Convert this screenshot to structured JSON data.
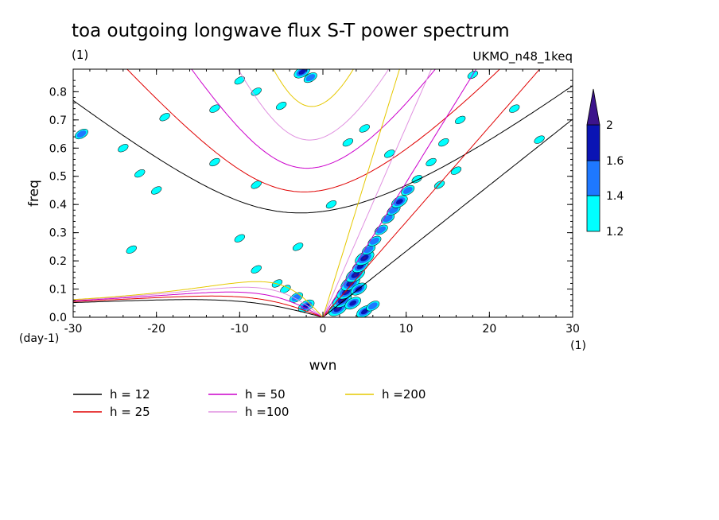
{
  "chart_data": {
    "type": "heatmap",
    "title": "toa outgoing longwave flux S-T power spectrum",
    "units_label": "(1)",
    "model_label": "UKMO_n48_1keq",
    "xlabel": "wvn",
    "ylabel": "freq",
    "x_unit_label": "(1)",
    "y_unit_label": "(day-1)",
    "xlim": [
      -30,
      30
    ],
    "ylim": [
      0,
      0.88
    ],
    "x_ticks": [
      -30,
      -20,
      -10,
      0,
      10,
      20,
      30
    ],
    "y_ticks": [
      0.0,
      0.1,
      0.2,
      0.3,
      0.4,
      0.5,
      0.6,
      0.7,
      0.8
    ],
    "x_tick_labels": [
      "-30",
      "-20",
      "-10",
      "0",
      "10",
      "20",
      "30"
    ],
    "y_tick_labels": [
      "0.0",
      "0.1",
      "0.2",
      "0.3",
      "0.4",
      "0.5",
      "0.6",
      "0.7",
      "0.8"
    ],
    "colorbar": {
      "levels": [
        1.2,
        1.4,
        1.6,
        2
      ],
      "labels": [
        "1.2",
        "1.4",
        "1.6",
        "2"
      ],
      "colors": [
        "#00ffff",
        "#1e78ff",
        "#0a14b4",
        "#3c148c"
      ]
    },
    "dispersion_curves": [
      {
        "label": "h = 12",
        "h": 12,
        "color": "#000000"
      },
      {
        "label": "h = 25",
        "h": 25,
        "color": "#e00000"
      },
      {
        "label": "h = 50",
        "h": 50,
        "color": "#cc00cc"
      },
      {
        "label": "h =100",
        "h": 100,
        "color": "#e090e0"
      },
      {
        "label": "h =200",
        "h": 200,
        "color": "#e6c800"
      }
    ],
    "power_blobs": [
      {
        "x": 1.8,
        "y": 0.03,
        "level": 4
      },
      {
        "x": 2.3,
        "y": 0.06,
        "level": 4
      },
      {
        "x": 2.8,
        "y": 0.09,
        "level": 4
      },
      {
        "x": 3.3,
        "y": 0.12,
        "level": 4
      },
      {
        "x": 3.9,
        "y": 0.15,
        "level": 4
      },
      {
        "x": 4.5,
        "y": 0.18,
        "level": 3
      },
      {
        "x": 5.0,
        "y": 0.21,
        "level": 4
      },
      {
        "x": 4.3,
        "y": 0.1,
        "level": 3
      },
      {
        "x": 3.6,
        "y": 0.05,
        "level": 3
      },
      {
        "x": 5.5,
        "y": 0.24,
        "level": 2
      },
      {
        "x": 6.2,
        "y": 0.27,
        "level": 2
      },
      {
        "x": 7.0,
        "y": 0.31,
        "level": 2
      },
      {
        "x": 7.8,
        "y": 0.35,
        "level": 2
      },
      {
        "x": 8.5,
        "y": 0.38,
        "level": 2
      },
      {
        "x": 9.2,
        "y": 0.41,
        "level": 3
      },
      {
        "x": 10.2,
        "y": 0.45,
        "level": 2
      },
      {
        "x": 11.3,
        "y": 0.49,
        "level": 1
      },
      {
        "x": 13.0,
        "y": 0.55,
        "level": 1
      },
      {
        "x": 14.5,
        "y": 0.62,
        "level": 1
      },
      {
        "x": 16.5,
        "y": 0.7,
        "level": 1
      },
      {
        "x": -2.0,
        "y": 0.04,
        "level": 3
      },
      {
        "x": -3.2,
        "y": 0.07,
        "level": 2
      },
      {
        "x": -4.5,
        "y": 0.1,
        "level": 1
      },
      {
        "x": -5.5,
        "y": 0.12,
        "level": 1
      },
      {
        "x": 5.0,
        "y": 0.02,
        "level": 3
      },
      {
        "x": 6.0,
        "y": 0.04,
        "level": 2
      },
      {
        "x": -1.5,
        "y": 0.85,
        "level": 2
      },
      {
        "x": -2.5,
        "y": 0.87,
        "level": 3
      },
      {
        "x": -5.0,
        "y": 0.75,
        "level": 1
      },
      {
        "x": -8.0,
        "y": 0.8,
        "level": 1
      },
      {
        "x": -10.0,
        "y": 0.84,
        "level": 1
      },
      {
        "x": -19.0,
        "y": 0.71,
        "level": 1
      },
      {
        "x": -20.0,
        "y": 0.45,
        "level": 1
      },
      {
        "x": -22.0,
        "y": 0.51,
        "level": 1
      },
      {
        "x": -29.0,
        "y": 0.65,
        "level": 2
      },
      {
        "x": -24.0,
        "y": 0.6,
        "level": 1
      },
      {
        "x": -13.0,
        "y": 0.55,
        "level": 1
      },
      {
        "x": -8.0,
        "y": 0.47,
        "level": 1
      },
      {
        "x": 5.0,
        "y": 0.67,
        "level": 1
      },
      {
        "x": 8.0,
        "y": 0.58,
        "level": 1
      },
      {
        "x": 16.0,
        "y": 0.52,
        "level": 1
      },
      {
        "x": 14.0,
        "y": 0.47,
        "level": 1
      },
      {
        "x": 23.0,
        "y": 0.74,
        "level": 1
      },
      {
        "x": 26.0,
        "y": 0.63,
        "level": 1
      },
      {
        "x": 3.0,
        "y": 0.62,
        "level": 1
      },
      {
        "x": 1.0,
        "y": 0.4,
        "level": 1
      },
      {
        "x": -10.0,
        "y": 0.28,
        "level": 1
      },
      {
        "x": -3.0,
        "y": 0.25,
        "level": 1
      },
      {
        "x": -8.0,
        "y": 0.17,
        "level": 1
      },
      {
        "x": -23.0,
        "y": 0.24,
        "level": 1
      },
      {
        "x": -13.0,
        "y": 0.74,
        "level": 1
      },
      {
        "x": 18.0,
        "y": 0.86,
        "level": 1
      }
    ]
  },
  "legend": {
    "items": [
      {
        "label": "h = 12",
        "color": "#000000"
      },
      {
        "label": "h = 25",
        "color": "#e00000"
      },
      {
        "label": "h = 50",
        "color": "#cc00cc"
      },
      {
        "label": "h =100",
        "color": "#e090e0"
      },
      {
        "label": "h =200",
        "color": "#e6c800"
      }
    ]
  }
}
